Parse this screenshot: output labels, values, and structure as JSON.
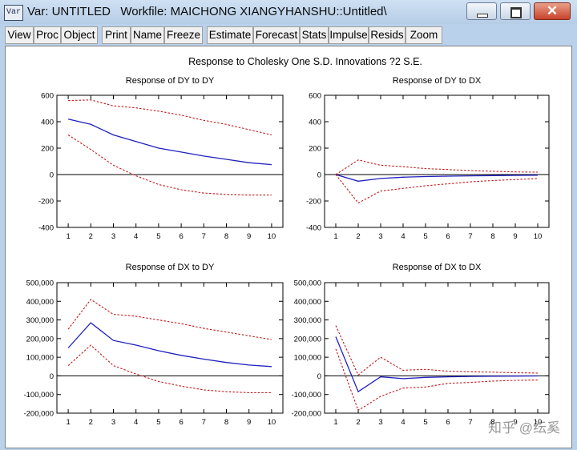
{
  "window": {
    "icon_label": "Var",
    "title": "Var: UNTITLED   Workfile: MAICHONG XIANGYHANSHU::Untitled\\",
    "close_glyph": "✕"
  },
  "toolbar": {
    "buttons": [
      "View",
      "Proc",
      "Object",
      "Print",
      "Name",
      "Freeze",
      "Estimate",
      "Forecast",
      "Stats",
      "Impulse",
      "Resids",
      "Zoom"
    ]
  },
  "figure": {
    "main_title": "Response to Cholesky One S.D. Innovations ?2 S.E.",
    "watermark": "知乎 @纭奚"
  },
  "colors": {
    "response": "#1f1fbf",
    "band": "#c4171b",
    "zero": "#000000"
  },
  "chart_data": [
    {
      "type": "line",
      "title": "Response of DY to DY",
      "x": [
        1,
        2,
        3,
        4,
        5,
        6,
        7,
        8,
        9,
        10
      ],
      "ylim": [
        -400,
        600
      ],
      "yticks": [
        -400,
        -200,
        0,
        200,
        400,
        600
      ],
      "ytick_labels": [
        "-400",
        "-200",
        "0",
        "200",
        "400",
        "600"
      ],
      "series": [
        {
          "role": "response",
          "values": [
            420,
            380,
            300,
            250,
            200,
            170,
            140,
            115,
            90,
            75
          ]
        },
        {
          "role": "upper",
          "values": [
            560,
            565,
            520,
            505,
            480,
            450,
            410,
            380,
            340,
            300
          ]
        },
        {
          "role": "lower",
          "values": [
            300,
            190,
            70,
            -10,
            -75,
            -115,
            -140,
            -150,
            -155,
            -155
          ]
        }
      ]
    },
    {
      "type": "line",
      "title": "Response of DY to DX",
      "x": [
        1,
        2,
        3,
        4,
        5,
        6,
        7,
        8,
        9,
        10
      ],
      "ylim": [
        -400,
        600
      ],
      "yticks": [
        -400,
        -200,
        0,
        200,
        400,
        600
      ],
      "ytick_labels": [
        "-400",
        "-200",
        "0",
        "200",
        "400",
        "600"
      ],
      "series": [
        {
          "role": "response",
          "values": [
            0,
            -50,
            -30,
            -20,
            -15,
            -12,
            -10,
            -8,
            -6,
            -5
          ]
        },
        {
          "role": "upper",
          "values": [
            0,
            110,
            70,
            60,
            45,
            38,
            30,
            25,
            20,
            18
          ]
        },
        {
          "role": "lower",
          "values": [
            0,
            -215,
            -125,
            -105,
            -85,
            -70,
            -55,
            -45,
            -38,
            -30
          ]
        }
      ]
    },
    {
      "type": "line",
      "title": "Response of DX to DY",
      "x": [
        1,
        2,
        3,
        4,
        5,
        6,
        7,
        8,
        9,
        10
      ],
      "ylim": [
        -200000,
        500000
      ],
      "yticks": [
        -200000,
        -100000,
        0,
        100000,
        200000,
        300000,
        400000,
        500000
      ],
      "ytick_labels": [
        "-200,000",
        "-100,000",
        "0",
        "100,000",
        "200,000",
        "300,000",
        "400,000",
        "500,000"
      ],
      "series": [
        {
          "role": "response",
          "values": [
            150000,
            285000,
            190000,
            165000,
            135000,
            110000,
            90000,
            72000,
            58000,
            50000
          ]
        },
        {
          "role": "upper",
          "values": [
            250000,
            410000,
            330000,
            320000,
            300000,
            280000,
            255000,
            235000,
            215000,
            195000
          ]
        },
        {
          "role": "lower",
          "values": [
            55000,
            165000,
            55000,
            10000,
            -30000,
            -55000,
            -75000,
            -85000,
            -90000,
            -90000
          ]
        }
      ]
    },
    {
      "type": "line",
      "title": "Response of DX to DX",
      "x": [
        1,
        2,
        3,
        4,
        5,
        6,
        7,
        8,
        9,
        10
      ],
      "ylim": [
        -200000,
        500000
      ],
      "yticks": [
        -200000,
        -100000,
        0,
        100000,
        200000,
        300000,
        400000,
        500000
      ],
      "ytick_labels": [
        "-200,000",
        "-100,000",
        "0",
        "100,000",
        "200,000",
        "300,000",
        "400,000",
        "500,000"
      ],
      "series": [
        {
          "role": "response",
          "values": [
            210000,
            -85000,
            -5000,
            -15000,
            -8000,
            -5000,
            -3000,
            -2000,
            -1000,
            -500
          ]
        },
        {
          "role": "upper",
          "values": [
            270000,
            5000,
            100000,
            30000,
            35000,
            25000,
            22000,
            20000,
            17000,
            15000
          ]
        },
        {
          "role": "lower",
          "values": [
            145000,
            -185000,
            -110000,
            -65000,
            -60000,
            -40000,
            -35000,
            -28000,
            -24000,
            -22000
          ]
        }
      ]
    }
  ]
}
